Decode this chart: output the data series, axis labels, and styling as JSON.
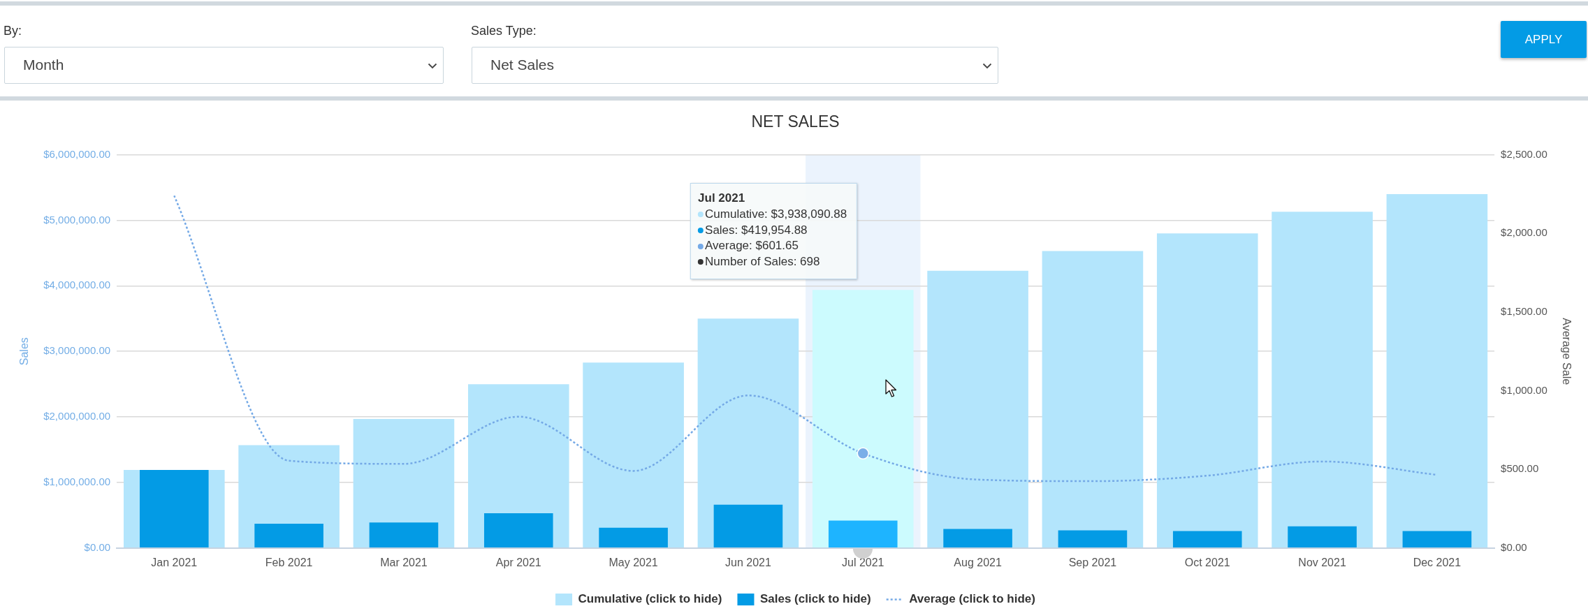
{
  "chart_data": {
    "type": "bar",
    "title": "NET SALES",
    "ylabel": "Sales",
    "y2label": "Average Sale",
    "categories": [
      "Jan 2021",
      "Feb 2021",
      "Mar 2021",
      "Apr 2021",
      "May 2021",
      "Jun 2021",
      "Jul 2021",
      "Aug 2021",
      "Sep 2021",
      "Oct 2021",
      "Nov 2021",
      "Dec 2021"
    ],
    "series": [
      {
        "name": "Cumulative (click to hide)",
        "color": "#b3e5fc",
        "colors": [
          "#b3e5fc",
          "#b3e5fc",
          "#b3e5fc",
          "#b3e5fc",
          "#b3e5fc",
          "#b3e5fc",
          "#ccfbfe",
          "#b3e5fc",
          "#b3e5fc",
          "#b3e5fc",
          "#b3e5fc",
          "#b3e5fc"
        ],
        "values": [
          1190000,
          1570000,
          1970000,
          2500000,
          2830000,
          3500000,
          3938090.88,
          4230000,
          4530000,
          4800000,
          5130000,
          5400000
        ]
      },
      {
        "name": "Sales (click to hide)",
        "color": "#039be5",
        "colors": [
          "#039be5",
          "#039be5",
          "#039be5",
          "#039be5",
          "#039be5",
          "#039be5",
          "#1eb4ff",
          "#039be5",
          "#039be5",
          "#039be5",
          "#039be5",
          "#039be5"
        ],
        "values": [
          1190000,
          370000,
          390000,
          530000,
          310000,
          660000,
          419954.88,
          290000,
          270000,
          260000,
          330000,
          260000
        ]
      },
      {
        "type": "line",
        "name": "Average (click to hide)",
        "color": "#74a9e6",
        "axis": "y2",
        "line_style": "dotted",
        "marker": "none",
        "values": [
          2240,
          555,
          535,
          835,
          490,
          970,
          601.65,
          435,
          425,
          460,
          550,
          465
        ]
      },
      {
        "type": "scatter",
        "x": [
          "Jul 2021"
        ],
        "color": "#7aaee8",
        "axis": "y2",
        "marker": "circle",
        "values": [
          601.65
        ]
      }
    ],
    "ylim": [
      0,
      6000000
    ],
    "yticks": [
      {
        "value": 0,
        "label": "$0.00"
      },
      {
        "value": 1000000,
        "label": "$1,000,000.00"
      },
      {
        "value": 2000000,
        "label": "$2,000,000.00"
      },
      {
        "value": 3000000,
        "label": "$3,000,000.00"
      },
      {
        "value": 4000000,
        "label": "$4,000,000.00"
      },
      {
        "value": 5000000,
        "label": "$5,000,000.00"
      },
      {
        "value": 6000000,
        "label": "$6,000,000.00"
      }
    ],
    "y2lim": [
      0,
      2500
    ],
    "y2ticks": [
      {
        "value": 0,
        "label": "$0.00"
      },
      {
        "value": 500,
        "label": "$500.00"
      },
      {
        "value": 1000,
        "label": "$1,000.00"
      },
      {
        "value": 1500,
        "label": "$1,500.00"
      },
      {
        "value": 2000,
        "label": "$2,000.00"
      },
      {
        "value": 2500,
        "label": "$2,500.00"
      }
    ],
    "grid": "y",
    "legend": "bottom",
    "bands": [
      {
        "axis": "x",
        "from": "Jul 2021",
        "to": "Jul 2021",
        "color": "#ebf3fd"
      }
    ],
    "annotations": [
      "By:",
      "Month",
      "Sales Type:",
      "Net Sales",
      "APPLY",
      "Jul 2021",
      "Cumulative: $3,938,090.88",
      "Sales: $419,954.88",
      "Average: $601.65",
      "Number of Sales: 698"
    ]
  }
}
